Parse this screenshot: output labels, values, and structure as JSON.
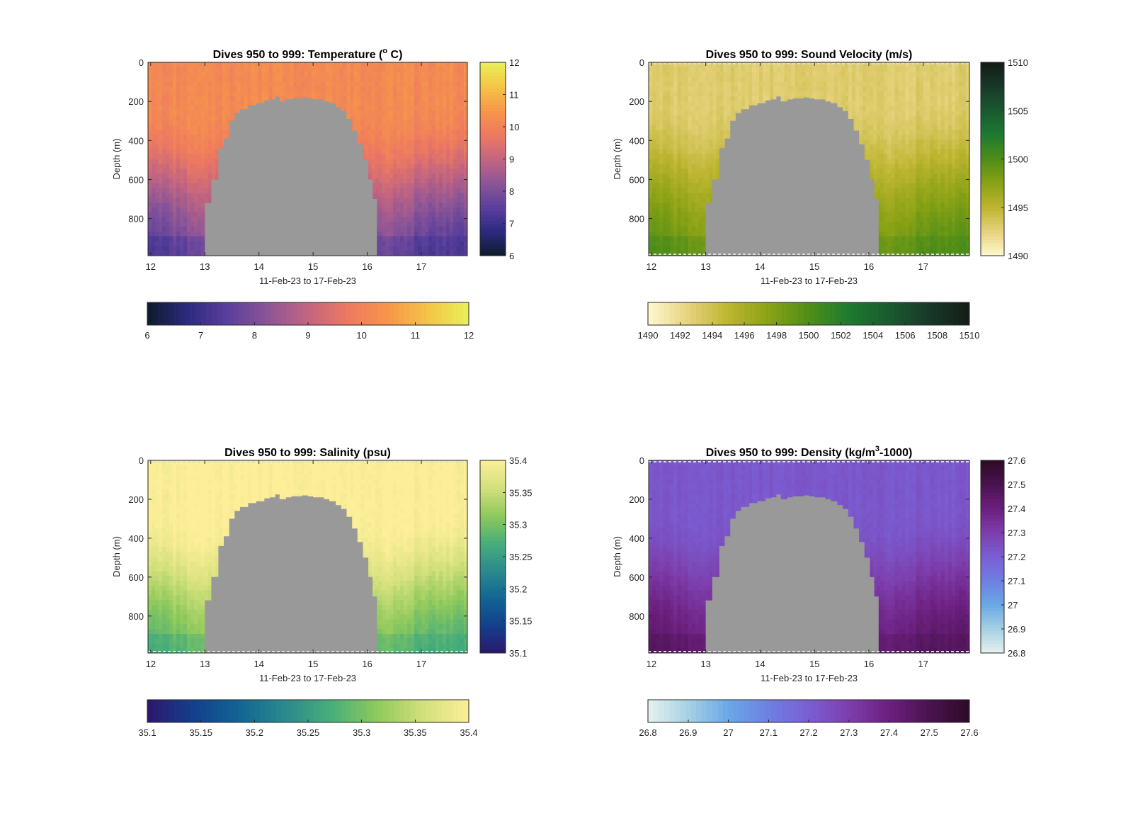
{
  "chart_data": [
    {
      "id": "temperature",
      "type": "heatmap",
      "title": "Dives 950 to 999: Temperature (° C)",
      "title_parts": [
        "Dives 950 to 999: Temperature (",
        "o",
        " C)"
      ],
      "title_style": "superscript",
      "xlabel": "11-Feb-23 to 17-Feb-23",
      "ylabel": "Depth (m)",
      "xlim": [
        11.95,
        17.85
      ],
      "ylim": [
        0,
        990
      ],
      "y_reversed": true,
      "xticks": [
        12,
        13,
        14,
        15,
        16,
        17
      ],
      "yticks": [
        0,
        200,
        400,
        600,
        800
      ],
      "clim": [
        6,
        12
      ],
      "cticks": [
        6,
        7,
        8,
        9,
        10,
        11,
        12
      ],
      "colormap": [
        "#0c1b2a",
        "#2c2a7e",
        "#5a3f9c",
        "#8c5597",
        "#c36580",
        "#ed7960",
        "#f7964a",
        "#f4c546",
        "#e9f057"
      ],
      "surface_value": 10.2,
      "deep_value": 7.5,
      "transition_depth": 350,
      "sensor_flag_lines": false,
      "mask_color": "#999999",
      "vertical_colorbar": true,
      "horizontal_colorbar": true
    },
    {
      "id": "sound-velocity",
      "type": "heatmap",
      "title": "Dives 950 to 999: Sound Velocity (m/s)",
      "title_parts": [
        "Dives 950 to 999: Sound Velocity (m/s)"
      ],
      "title_style": "plain",
      "xlabel": "11-Feb-23 to 17-Feb-23",
      "ylabel": "Depth (m)",
      "xlim": [
        11.95,
        17.85
      ],
      "ylim": [
        0,
        990
      ],
      "y_reversed": true,
      "xticks": [
        12,
        13,
        14,
        15,
        16,
        17
      ],
      "yticks": [
        0,
        200,
        400,
        600,
        800
      ],
      "clim": [
        1490,
        1510
      ],
      "cticks": [
        1490,
        1495,
        1500,
        1505,
        1510
      ],
      "cticks_horizontal": [
        1490,
        1492,
        1494,
        1496,
        1498,
        1500,
        1502,
        1504,
        1506,
        1508,
        1510
      ],
      "colormap": [
        "#fdf9cf",
        "#e7d27d",
        "#bdb530",
        "#8aa215",
        "#4f8e18",
        "#1e7a2f",
        "#1a5a2f",
        "#18392a",
        "#141c16"
      ],
      "surface_value": 1493,
      "deep_value": 1499.5,
      "transition_depth": 300,
      "sensor_flag_lines": true,
      "mask_color": "#999999",
      "vertical_colorbar": true,
      "horizontal_colorbar": true
    },
    {
      "id": "salinity",
      "type": "heatmap",
      "title": "Dives 950 to 999: Salinity (psu)",
      "title_parts": [
        "Dives 950 to 999: Salinity (psu)"
      ],
      "title_style": "plain",
      "xlabel": "11-Feb-23 to 17-Feb-23",
      "ylabel": "Depth (m)",
      "xlim": [
        11.95,
        17.85
      ],
      "ylim": [
        0,
        990
      ],
      "y_reversed": true,
      "xticks": [
        12,
        13,
        14,
        15,
        16,
        17
      ],
      "yticks": [
        0,
        200,
        400,
        600,
        800
      ],
      "clim": [
        35.1,
        35.4
      ],
      "cticks": [
        35.1,
        35.15,
        35.2,
        35.25,
        35.3,
        35.35,
        35.4
      ],
      "colormap": [
        "#2a186c",
        "#143f8c",
        "#116593",
        "#2b8a8d",
        "#48ad7a",
        "#8ec95c",
        "#d2e07a",
        "#fdee99"
      ],
      "surface_value": 35.4,
      "deep_value": 35.28,
      "transition_depth": 420,
      "sensor_flag_lines": true,
      "mask_color": "#999999",
      "vertical_colorbar": true,
      "horizontal_colorbar": true
    },
    {
      "id": "density",
      "type": "heatmap",
      "title": "Dives 950 to 999: Density (kg/m³-1000)",
      "title_parts": [
        "Dives 950 to 999: Density (kg/m",
        "3",
        "-1000)"
      ],
      "title_style": "superscript",
      "xlabel": "11-Feb-23 to 17-Feb-23",
      "ylabel": "Depth (m)",
      "xlim": [
        11.95,
        17.85
      ],
      "ylim": [
        0,
        990
      ],
      "y_reversed": true,
      "xticks": [
        12,
        13,
        14,
        15,
        16,
        17
      ],
      "yticks": [
        0,
        200,
        400,
        600,
        800
      ],
      "clim": [
        26.8,
        27.6
      ],
      "cticks": [
        26.8,
        26.9,
        27,
        27.1,
        27.2,
        27.3,
        27.4,
        27.5,
        27.6
      ],
      "colormap": [
        "#e6f1f0",
        "#a6d1e2",
        "#6aa8e6",
        "#6f80e3",
        "#7a5ed3",
        "#7d3eac",
        "#6c1f7e",
        "#4a1350",
        "#2d0a25"
      ],
      "surface_value": 27.22,
      "deep_value": 27.45,
      "transition_depth": 400,
      "sensor_flag_lines": true,
      "mask_color": "#999999",
      "vertical_colorbar": true,
      "horizontal_colorbar": true
    }
  ],
  "mask_profile": {
    "x": [
      13.0,
      13.12,
      13.25,
      13.35,
      13.45,
      13.55,
      13.65,
      13.8,
      13.95,
      14.1,
      14.2,
      14.3,
      14.38,
      14.5,
      14.6,
      14.7,
      14.8,
      14.9,
      15.0,
      15.1,
      15.2,
      15.3,
      15.42,
      15.52,
      15.62,
      15.72,
      15.82,
      15.92,
      16.02,
      16.1,
      16.18
    ],
    "top": [
      720,
      600,
      440,
      390,
      300,
      260,
      240,
      220,
      210,
      195,
      190,
      175,
      200,
      190,
      185,
      185,
      180,
      185,
      190,
      190,
      200,
      210,
      230,
      250,
      290,
      350,
      420,
      500,
      600,
      700,
      720
    ]
  }
}
